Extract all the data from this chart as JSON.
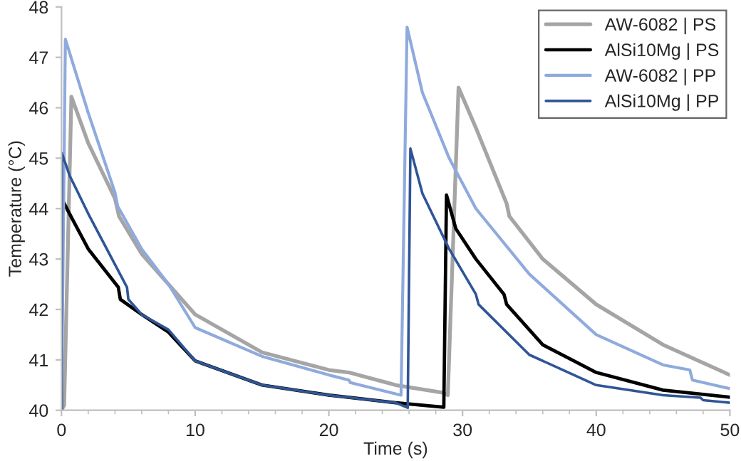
{
  "chart_data": {
    "type": "line",
    "xlabel": "Time (s)",
    "ylabel": "Temperature (°C)",
    "xlim": [
      0,
      50
    ],
    "ylim": [
      40,
      48
    ],
    "xticks": [
      0,
      10,
      20,
      30,
      40,
      50
    ],
    "yticks": [
      40,
      41,
      42,
      43,
      44,
      45,
      46,
      47,
      48
    ],
    "legend": "top right",
    "grid": false,
    "marker": "none",
    "line_style": "solid",
    "series": [
      {
        "name": "AW-6082 | PS",
        "color": "#a5a5a5",
        "x": [
          0,
          0.2,
          0.74,
          2,
          4,
          4.3,
          6,
          8,
          10,
          15,
          20,
          21.5,
          24.6,
          25,
          28.5,
          28.9,
          29.7,
          31,
          33.3,
          33.5,
          36,
          40,
          45,
          50
        ],
        "values": [
          40.0,
          40.1,
          46.22,
          45.3,
          44.2,
          43.85,
          43.1,
          42.5,
          41.9,
          41.15,
          40.8,
          40.75,
          40.53,
          40.5,
          40.35,
          40.3,
          46.4,
          45.6,
          44.1,
          43.85,
          43.0,
          42.1,
          41.3,
          40.7
        ]
      },
      {
        "name": "AlSi10Mg | PS",
        "color": "#000000",
        "x": [
          0,
          0.05,
          0.6,
          2,
          4.25,
          4.4,
          6,
          8,
          10,
          15,
          20,
          25,
          28.6,
          28.8,
          29.5,
          31,
          33.1,
          33.3,
          36,
          40,
          45,
          50
        ],
        "values": [
          40.0,
          44.18,
          43.9,
          43.2,
          42.44,
          42.2,
          41.9,
          41.55,
          40.98,
          40.5,
          40.3,
          40.15,
          40.06,
          44.27,
          43.6,
          43.0,
          42.3,
          42.1,
          41.3,
          40.75,
          40.4,
          40.26
        ]
      },
      {
        "name": "AW-6082 | PP",
        "color": "#8faadc",
        "x": [
          0,
          0.29,
          2,
          4,
          4.2,
          6,
          8,
          10,
          15,
          20,
          21.5,
          21.6,
          25.4,
          25.85,
          27,
          29,
          31,
          35,
          40,
          45,
          47,
          47.2,
          50
        ],
        "values": [
          40.0,
          47.36,
          45.9,
          44.32,
          44.05,
          43.2,
          42.5,
          41.64,
          41.07,
          40.7,
          40.6,
          40.55,
          40.3,
          47.6,
          46.3,
          45.0,
          44.0,
          42.7,
          41.5,
          40.9,
          40.8,
          40.6,
          40.43
        ]
      },
      {
        "name": "AlSi10Mg | PP",
        "color": "#2f5597",
        "x": [
          0,
          0.03,
          0.6,
          2,
          4.9,
          5.0,
          6,
          8,
          10,
          15,
          20,
          25,
          25.9,
          26.1,
          27,
          29,
          31.0,
          31.2,
          35,
          40,
          45,
          47.8,
          48,
          50
        ],
        "values": [
          40.0,
          45.1,
          44.66,
          43.9,
          42.44,
          42.2,
          41.9,
          41.6,
          40.98,
          40.5,
          40.3,
          40.15,
          40.05,
          45.19,
          44.3,
          43.2,
          42.3,
          42.1,
          41.1,
          40.5,
          40.3,
          40.25,
          40.2,
          40.15
        ]
      }
    ]
  }
}
